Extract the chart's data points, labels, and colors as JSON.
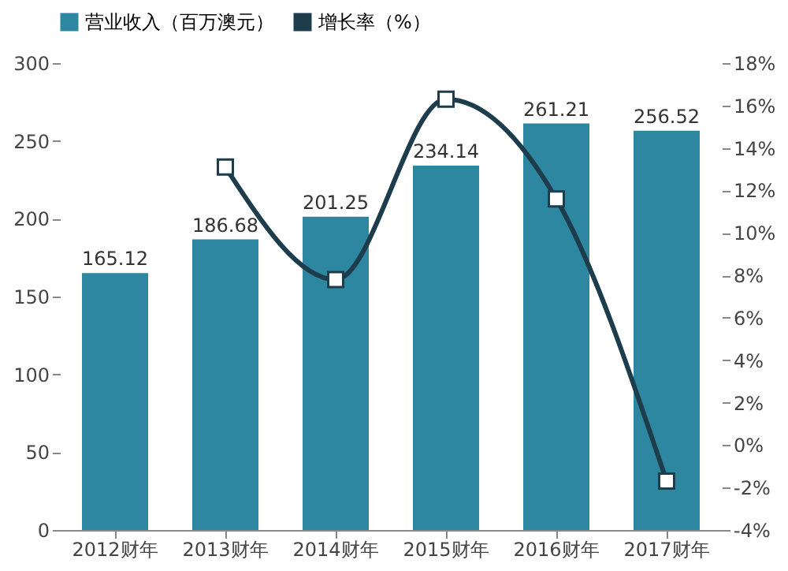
{
  "chart_data": {
    "type": "bar",
    "categories": [
      "2012财年",
      "2013财年",
      "2014财年",
      "2015财年",
      "2016财年",
      "2017财年"
    ],
    "series": [
      {
        "name": "营业收入（百万澳元）",
        "color": "#2e87a0",
        "values": [
          165.12,
          186.68,
          201.25,
          234.14,
          261.21,
          256.52
        ],
        "data_labels": true
      },
      {
        "name": "增长率（%）",
        "type": "line",
        "axis": "y2",
        "color": "#1e3d4c",
        "marker": "square",
        "values": [
          null,
          13.1,
          7.8,
          16.3,
          11.6,
          -1.7
        ]
      }
    ],
    "ylim": [
      0,
      300
    ],
    "yticks": [
      0,
      50,
      100,
      150,
      200,
      250,
      300
    ],
    "y2lim": [
      -4,
      18
    ],
    "y2ticks": [
      {
        "value": -4,
        "label": "-4%"
      },
      {
        "value": -2,
        "label": "-2%"
      },
      {
        "value": 0,
        "label": "0%"
      },
      {
        "value": 2,
        "label": "2%"
      },
      {
        "value": 4,
        "label": "4%"
      },
      {
        "value": 6,
        "label": "6%"
      },
      {
        "value": 8,
        "label": "8%"
      },
      {
        "value": 10,
        "label": "10%"
      },
      {
        "value": 12,
        "label": "12%"
      },
      {
        "value": 14,
        "label": "14%"
      },
      {
        "value": 16,
        "label": "16%"
      },
      {
        "value": 18,
        "label": "18%"
      }
    ],
    "grid": false,
    "legend": "top"
  }
}
